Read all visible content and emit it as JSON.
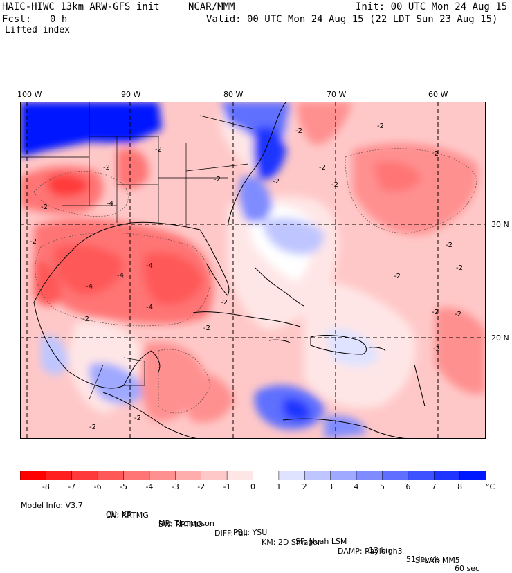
{
  "header": {
    "model": "HAIC-HIWC 13km ARW-GFS init",
    "org": "NCAR/MMM",
    "init": "Init: 00 UTC Mon 24 Aug 15",
    "fcst_label": "Fcst:",
    "fcst_value": "0 h",
    "valid": "Valid: 00 UTC Mon 24 Aug 15 (22 LDT Sun 23 Aug 15)",
    "field": "Lifted index"
  },
  "longitude_labels": [
    "100 W",
    "90 W",
    "80 W",
    "70 W",
    "60 W"
  ],
  "latitude_labels": [
    "30 N",
    "20 N"
  ],
  "colorbar": {
    "unit": "°C",
    "ticks": [
      "-8",
      "-7",
      "-6",
      "-5",
      "-4",
      "-3",
      "-2",
      "-1",
      "0",
      "1",
      "2",
      "3",
      "4",
      "5",
      "6",
      "7",
      "8"
    ],
    "colors": [
      "#ff0000",
      "#ff1f1f",
      "#ff3a3a",
      "#ff5858",
      "#ff7474",
      "#ff9090",
      "#ffacac",
      "#ffc8c8",
      "#ffe6e6",
      "#ffffff",
      "#dfe3ff",
      "#bfc6ff",
      "#9fa9ff",
      "#7f8cff",
      "#5f6fff",
      "#3f52ff",
      "#1f35ff",
      "#0018ff"
    ]
  },
  "contour_labels": [
    "-2",
    "-4"
  ],
  "model_info": {
    "line1": [
      "Model Info: V3.7",
      "CU: KF",
      "MP: Thompson",
      "PBL: YSU",
      "SF: Noah LSM",
      "13 km",
      "51 levels",
      "60 sec"
    ],
    "line2": [
      "LW: RRTMG",
      "SW: RRTMG",
      "DIFF: full",
      "KM: 2D Smagor",
      "DAMP: Rayleigh3",
      "SFLAY: MM5"
    ]
  }
}
